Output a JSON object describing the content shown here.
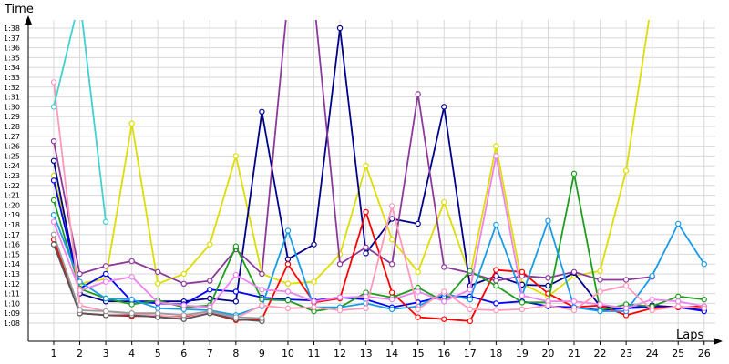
{
  "chart_data": {
    "type": "line",
    "ylabel": "Time",
    "xlabel": "Laps",
    "categories": [
      "1",
      "2",
      "3",
      "4",
      "5",
      "6",
      "7",
      "8",
      "9",
      "10",
      "11",
      "12",
      "13",
      "14",
      "15",
      "16",
      "17",
      "18",
      "19",
      "20",
      "21",
      "22",
      "23",
      "24",
      "25",
      "26"
    ],
    "y_ticks": [
      "1:08",
      "1:09",
      "1:10",
      "1:11",
      "1:12",
      "1:13",
      "1:14",
      "1:15",
      "1:16",
      "1:17",
      "1:18",
      "1:19",
      "1:20",
      "1:21",
      "1:22",
      "1:23",
      "1:24",
      "1:25",
      "1:26",
      "1:27",
      "1:28",
      "1:29",
      "1:30",
      "1:31",
      "1:32",
      "1:33",
      "1:34",
      "1:35",
      "1:36",
      "1:37",
      "1:38"
    ],
    "y_unit": "seconds",
    "ylim": [
      67,
      99
    ],
    "grid": true,
    "series": [
      {
        "color": "#dddd00",
        "values": [
          83,
          72,
          72.5,
          88.3,
          72,
          73,
          76,
          85,
          73,
          72,
          72.2,
          75,
          84,
          76.5,
          73.2,
          80.3,
          72.8,
          86,
          72,
          70.7,
          72.8,
          73.3,
          83.5,
          99,
          null,
          null
        ]
      },
      {
        "color": "#00008b",
        "values": [
          84.5,
          71,
          70.2,
          70.2,
          70.2,
          70.2,
          70.5,
          70.2,
          89.5,
          74.5,
          76,
          98,
          75.1,
          78.6,
          78.1,
          90,
          71.8,
          72.8,
          71.9,
          71.8,
          73.1,
          69.7,
          69.5,
          69.8,
          69.6,
          69.3
        ]
      },
      {
        "color": "#0000ff",
        "values": [
          82.5,
          71.5,
          73,
          70.2,
          70,
          69.9,
          71.4,
          71.2,
          70.6,
          70.4,
          70.3,
          70.6,
          70.4,
          69.6,
          70.1,
          70.7,
          70.7,
          70,
          70.2,
          69.7,
          69.6,
          69.3,
          69.5,
          69.6,
          69.6,
          69.2
        ]
      },
      {
        "color": "#8b3a9b",
        "values": [
          86.5,
          73,
          73.8,
          74.3,
          73.2,
          72,
          72.3,
          75.5,
          73,
          99,
          99,
          74,
          75.7,
          74,
          91.3,
          73.7,
          73.1,
          72.3,
          72.8,
          72.6,
          73.2,
          72.4,
          72.4,
          72.7,
          null,
          null
        ]
      },
      {
        "color": "#ff0000",
        "values": [
          76.5,
          69,
          68.8,
          68.7,
          68.7,
          68.6,
          69,
          68.3,
          68.4,
          74,
          70.1,
          70.5,
          79.3,
          71.1,
          68.6,
          68.4,
          68.2,
          73.4,
          73.2,
          71,
          69.6,
          69.8,
          68.8,
          69.5,
          69.6,
          69.7
        ]
      },
      {
        "color": "#1e9e1e",
        "values": [
          80.5,
          71.5,
          70.5,
          69.9,
          70.3,
          69.6,
          69.8,
          75.8,
          70.4,
          70.3,
          69.2,
          69.6,
          71.1,
          70.6,
          71.6,
          70.2,
          73.3,
          71.8,
          70.1,
          70.1,
          83.2,
          69.3,
          69.9,
          69.7,
          70.7,
          70.4
        ]
      },
      {
        "color": "#1a9be8",
        "values": [
          79,
          72.2,
          70.5,
          70.4,
          69.5,
          69.4,
          69.3,
          68.8,
          69.7,
          77.4,
          69.6,
          69.6,
          70,
          69.4,
          69.7,
          71,
          70.4,
          78,
          70.8,
          78.4,
          69.6,
          69.2,
          69.2,
          72.8,
          78.1,
          74
        ]
      },
      {
        "color": "#ee82ee",
        "values": [
          78.3,
          71.3,
          72.2,
          72.7,
          70.1,
          69.8,
          69.6,
          72.9,
          71.4,
          71.2,
          70.2,
          70.6,
          70.7,
          70.4,
          71.2,
          70.2,
          71.4,
          85,
          70.8,
          70.2,
          70.2,
          69.9,
          69.5,
          70.4,
          70.2,
          69.7
        ]
      },
      {
        "color": "#ff99bb",
        "values": [
          92.5,
          69.8,
          69.2,
          68.9,
          68.8,
          68.5,
          69.1,
          68.5,
          69.8,
          69.5,
          69.6,
          69.3,
          69.5,
          79.9,
          69.4,
          71.2,
          69.4,
          69.3,
          69.4,
          69.8,
          69.3,
          71.2,
          71.8,
          69.3,
          69.7,
          69.5
        ]
      },
      {
        "color": "#40d0d0",
        "values": [
          90,
          99,
          78.3,
          null,
          null,
          null,
          null,
          null,
          null,
          null,
          null,
          null,
          null,
          null,
          null,
          null,
          null,
          null,
          null,
          null,
          null,
          null,
          null,
          null,
          null,
          null
        ]
      },
      {
        "color": "#555555",
        "values": [
          76,
          69,
          68.8,
          68.8,
          68.6,
          68.4,
          69,
          68.4,
          68.2,
          null,
          null,
          null,
          null,
          null,
          null,
          null,
          null,
          null,
          null,
          null,
          null,
          null,
          null,
          null,
          null,
          null
        ]
      },
      {
        "color": "#999999",
        "values": [
          77,
          69.3,
          69.2,
          69,
          69,
          68.8,
          69.2,
          68.6,
          68.5,
          null,
          null,
          null,
          null,
          null,
          null,
          null,
          null,
          null,
          null,
          null,
          null,
          null,
          null,
          null,
          null,
          null
        ]
      }
    ]
  }
}
